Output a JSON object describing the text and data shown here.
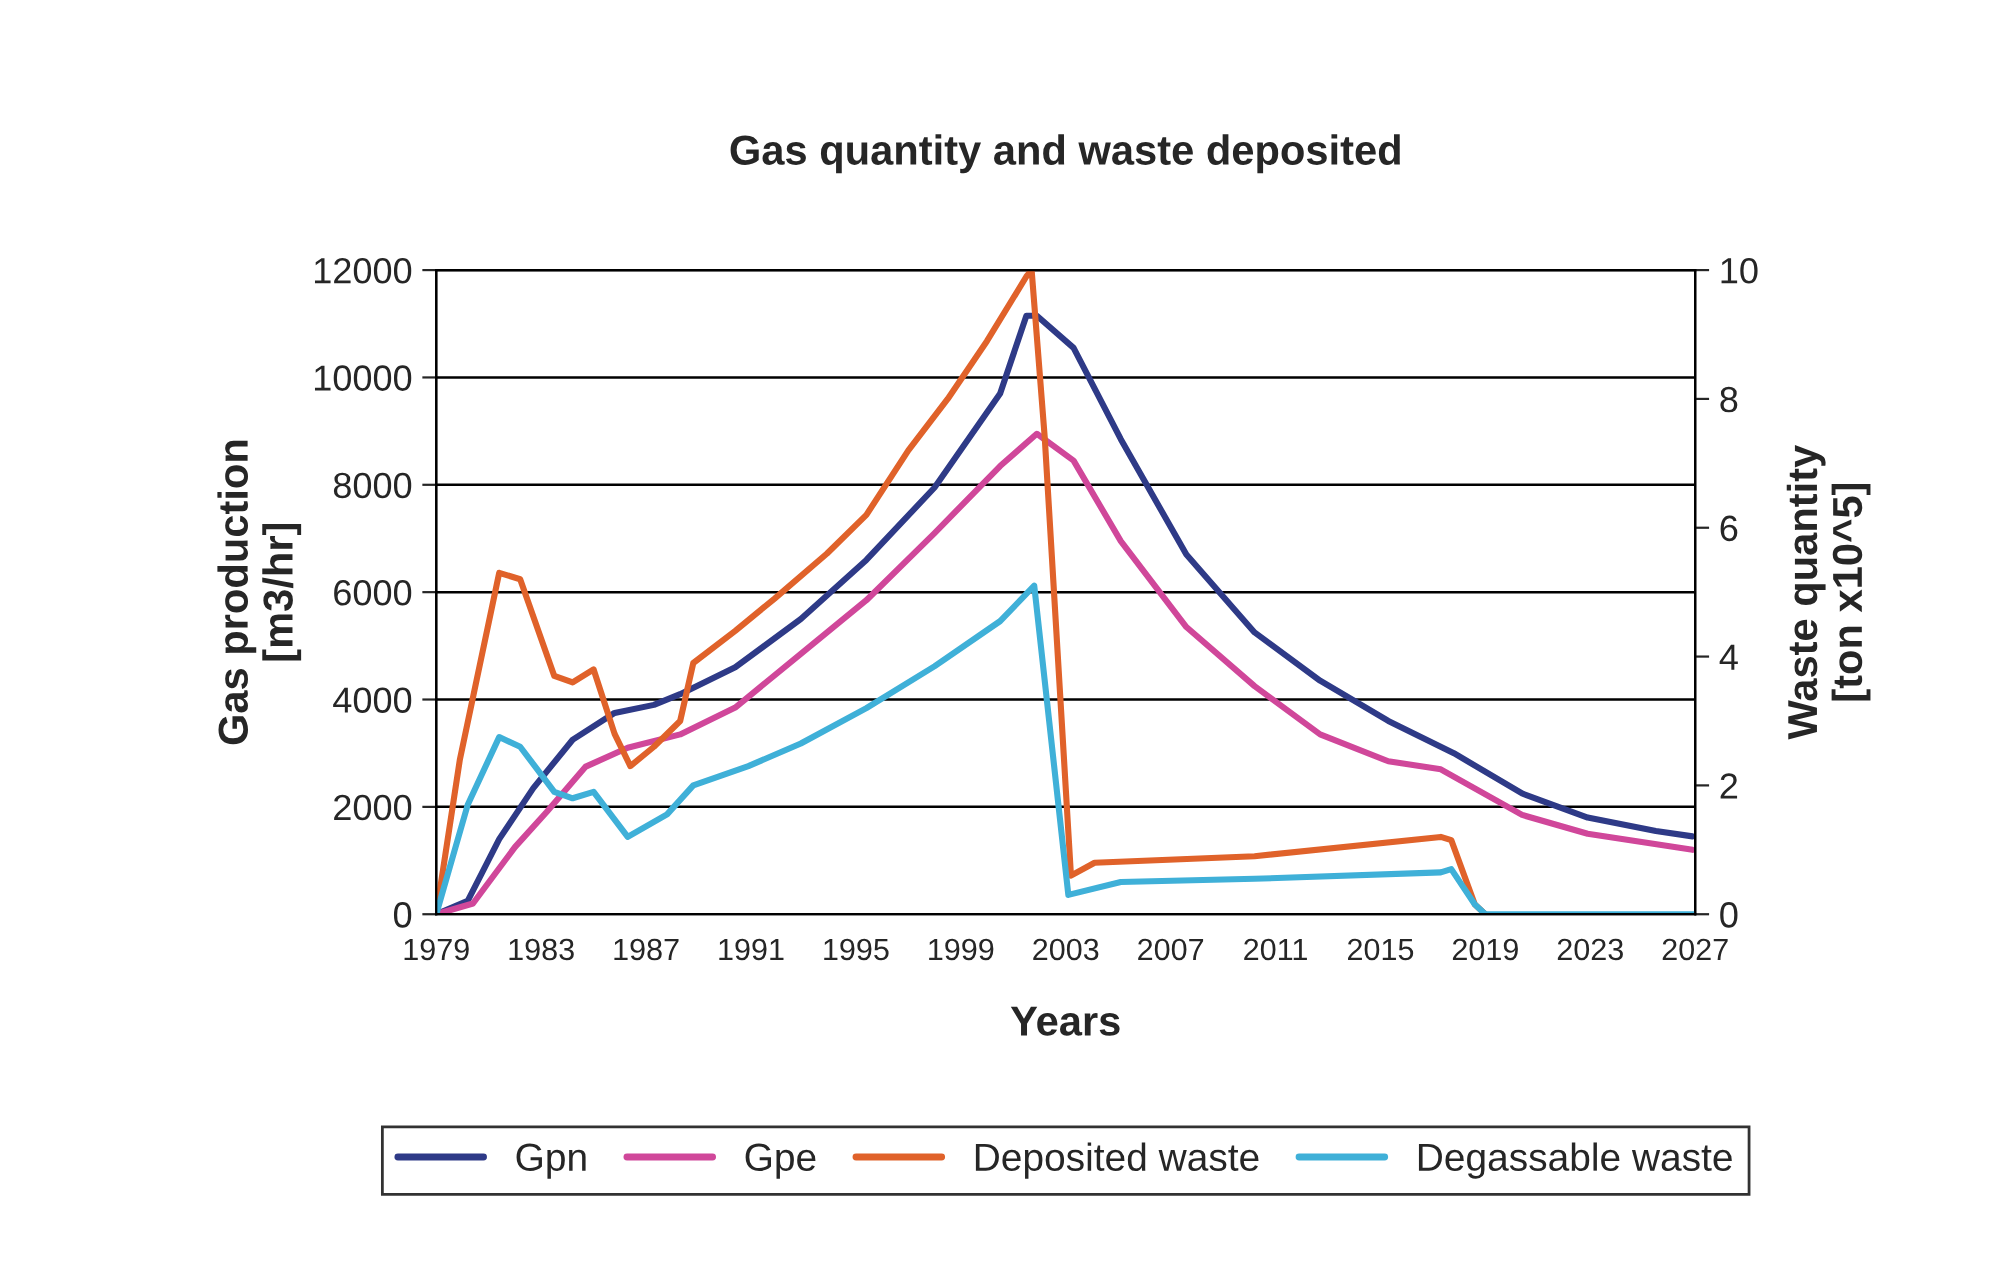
{
  "chart_data": {
    "type": "line",
    "title": "Gas quantity and waste deposited",
    "xlabel": "Years",
    "ylabel": "Gas production\n[m3/hr]",
    "y2label": "Waste quantity\n[ton x10^5]",
    "xlim": [
      1979,
      2027
    ],
    "xticks": [
      1979,
      1983,
      1987,
      1991,
      1995,
      1999,
      2003,
      2007,
      2011,
      2015,
      2019,
      2023,
      2027
    ],
    "ylim": [
      0,
      12000
    ],
    "yticks": [
      0,
      2000,
      4000,
      6000,
      8000,
      10000,
      12000
    ],
    "y2lim": [
      0,
      10
    ],
    "y2ticks": [
      0,
      2,
      4,
      6,
      8,
      10
    ],
    "grid": "y",
    "legend": "bottom",
    "line_style": "solid",
    "marker": "none",
    "series": [
      {
        "name": "Gpn",
        "color": "#2e3a87",
        "x": [
          1979,
          1980.2,
          1981.4,
          1982.7,
          1984.2,
          1985.8,
          1987.3,
          1988.3,
          1990.4,
          1992.9,
          1995.4,
          1998.0,
          2000.5,
          2001.5,
          2001.9,
          2003.3,
          2005.1,
          2007.6,
          2010.2,
          2012.7,
          2015.3,
          2017.8,
          2020.4,
          2022.9,
          2025.5,
          2026.9
        ],
        "values": [
          0,
          250,
          1400,
          2350,
          3250,
          3750,
          3900,
          4100,
          4600,
          5500,
          6600,
          7950,
          9700,
          11150,
          11150,
          10550,
          8850,
          6700,
          5250,
          4350,
          3600,
          3000,
          2250,
          1800,
          1550,
          1450
        ]
      },
      {
        "name": "Gpe",
        "color": "#d0479a",
        "x": [
          1979,
          1980.4,
          1982.0,
          1983.2,
          1984.7,
          1986.3,
          1988.3,
          1990.4,
          1992.9,
          1995.4,
          1998.0,
          2000.5,
          2001.9,
          2003.3,
          2005.1,
          2007.6,
          2010.2,
          2012.7,
          2015.3,
          2017.3,
          2020.4,
          2022.9,
          2026.9
        ],
        "values": [
          0,
          200,
          1250,
          1900,
          2750,
          3100,
          3350,
          3850,
          4850,
          5850,
          7100,
          8350,
          8950,
          8450,
          6950,
          5350,
          4250,
          3350,
          2850,
          2700,
          1850,
          1500,
          1200
        ]
      },
      {
        "name": "Deposited waste",
        "color": "#e0622a",
        "axis": "y2",
        "x": [
          1979,
          1979.9,
          1981.4,
          1982.2,
          1983.5,
          1984.2,
          1985.0,
          1985.8,
          1986.4,
          1987.3,
          1988.3,
          1988.8,
          1990.4,
          1991.9,
          1993.9,
          1995.4,
          1997.0,
          1998.5,
          2000.0,
          2001.5,
          2001.7,
          2002.2,
          2003.2,
          2004.1,
          2010.2,
          2017.3,
          2017.7,
          2018.6,
          2019
        ],
        "values": [
          0,
          2.4,
          5.3,
          5.2,
          3.7,
          3.6,
          3.8,
          2.8,
          2.3,
          2.6,
          3.0,
          3.9,
          4.4,
          4.9,
          5.6,
          6.2,
          7.2,
          8.0,
          8.9,
          9.9,
          10.0,
          7.4,
          0.6,
          0.8,
          0.9,
          1.2,
          1.15,
          0.15,
          0
        ]
      },
      {
        "name": "Degassable waste",
        "color": "#3fb0d8",
        "axis": "y2",
        "x": [
          1979,
          1980.2,
          1981.4,
          1982.2,
          1983.5,
          1984.2,
          1985.0,
          1986.3,
          1987.8,
          1988.8,
          1990.9,
          1992.9,
          1995.4,
          1998.0,
          2000.5,
          2001.8,
          2003.1,
          2005.1,
          2010.2,
          2017.3,
          2017.7,
          2018.6,
          2019,
          2027
        ],
        "values": [
          0,
          1.7,
          2.75,
          2.6,
          1.9,
          1.8,
          1.9,
          1.2,
          1.55,
          2.0,
          2.3,
          2.65,
          3.2,
          3.85,
          4.55,
          5.1,
          0.3,
          0.5,
          0.55,
          0.65,
          0.7,
          0.15,
          0,
          0
        ]
      }
    ]
  }
}
